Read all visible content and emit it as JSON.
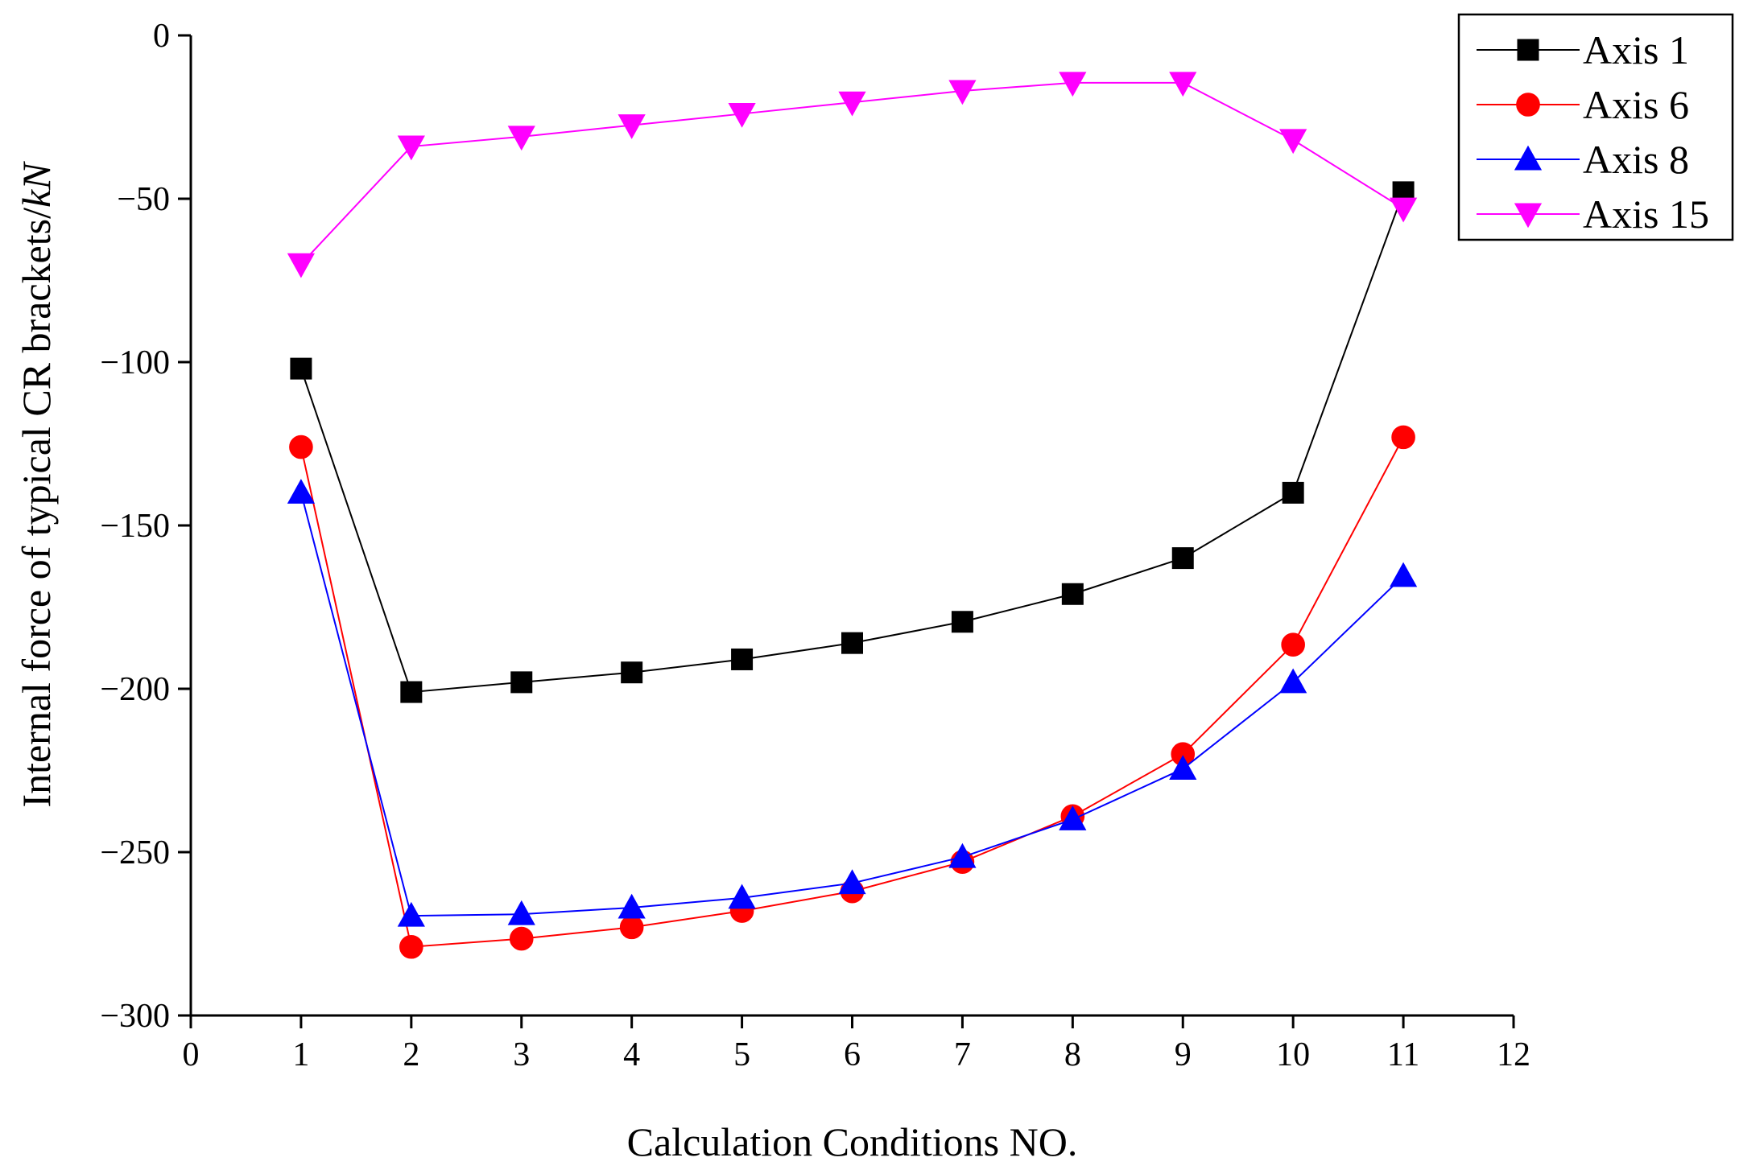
{
  "chart_data": {
    "type": "line",
    "title": "",
    "xlabel": "Calculation Conditions NO.",
    "ylabel": {
      "prefix": "Internal force of typical CR brackets/",
      "unit": "kN"
    },
    "xlim": [
      0,
      12
    ],
    "ylim": [
      -300,
      0
    ],
    "xticks": [
      0,
      1,
      2,
      3,
      4,
      5,
      6,
      7,
      8,
      9,
      10,
      11,
      12
    ],
    "yticks": [
      0,
      -50,
      -100,
      -150,
      -200,
      -250,
      -300
    ],
    "ytick_labels": [
      "0",
      "−50",
      "−100",
      "−150",
      "−200",
      "−250",
      "−300"
    ],
    "grid": false,
    "legend_position": "top-right",
    "x": [
      1,
      2,
      3,
      4,
      5,
      6,
      7,
      8,
      9,
      10,
      11
    ],
    "series": [
      {
        "name": "Axis 1",
        "marker": "square",
        "color": "#000000",
        "values": [
          -102,
          -201,
          -198,
          -195,
          -191,
          -186,
          -179.5,
          -171,
          -160,
          -140,
          -48
        ]
      },
      {
        "name": "Axis 6",
        "marker": "circle",
        "color": "#ff0000",
        "values": [
          -126,
          -279,
          -276.5,
          -273,
          -268,
          -262,
          -253,
          -239,
          -220,
          -186.5,
          -123
        ]
      },
      {
        "name": "Axis 8",
        "marker": "triangle-up",
        "color": "#0000ff",
        "values": [
          -140,
          -269.5,
          -269,
          -267,
          -264,
          -259.5,
          -251.5,
          -240,
          -224.5,
          -198,
          -165.5
        ]
      },
      {
        "name": "Axis 15",
        "marker": "triangle-down",
        "color": "#ff00ff",
        "values": [
          -70,
          -34,
          -31,
          -27.5,
          -24,
          -20.5,
          -17,
          -14.5,
          -14.5,
          -32,
          -53
        ]
      }
    ]
  }
}
